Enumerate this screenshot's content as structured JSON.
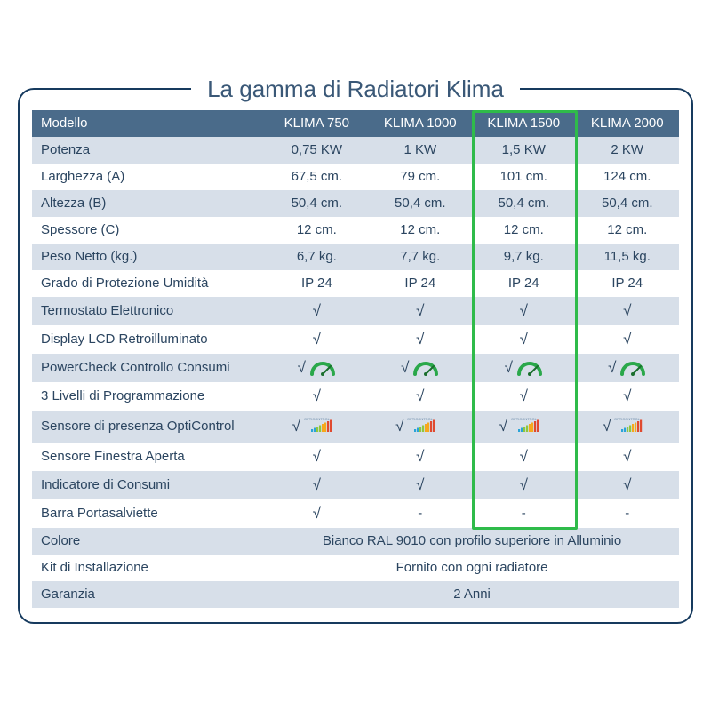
{
  "title": "La gamma di Radiatori Klima",
  "colors": {
    "frame_border": "#163a5e",
    "header_bg": "#4a6b8a",
    "header_fg": "#ffffff",
    "row_alt_bg": "#d7dfe9",
    "row_plain_bg": "#ffffff",
    "text": "#2b4560",
    "title": "#3a5877",
    "highlight": "#2fbb4a",
    "gauge_green": "#2aa84a",
    "gauge_needle": "#1b6f2e"
  },
  "check_glyph": "√",
  "dash_glyph": "-",
  "headers": {
    "label": "Modello",
    "cols": [
      "KLIMA 750",
      "KLIMA 1000",
      "KLIMA 1500",
      "KLIMA 2000"
    ]
  },
  "highlight_col_index": 2,
  "rows": [
    {
      "label": "Potenza",
      "type": "text",
      "vals": [
        "0,75 KW",
        "1 KW",
        "1,5 KW",
        "2 KW"
      ]
    },
    {
      "label": "Larghezza (A)",
      "type": "text",
      "vals": [
        "67,5 cm.",
        "79 cm.",
        "101 cm.",
        "124 cm."
      ]
    },
    {
      "label": "Altezza (B)",
      "type": "text",
      "vals": [
        "50,4 cm.",
        "50,4 cm.",
        "50,4 cm.",
        "50,4 cm."
      ]
    },
    {
      "label": "Spessore (C)",
      "type": "text",
      "vals": [
        "12 cm.",
        "12 cm.",
        "12 cm.",
        "12 cm."
      ]
    },
    {
      "label": "Peso Netto (kg.)",
      "type": "text",
      "vals": [
        "6,7 kg.",
        "7,7 kg.",
        "9,7 kg.",
        "11,5 kg."
      ]
    },
    {
      "label": "Grado di Protezione Umidità",
      "type": "text",
      "vals": [
        "IP 24",
        "IP 24",
        "IP 24",
        "IP 24"
      ]
    },
    {
      "label": "Termostato Elettronico",
      "type": "check",
      "vals": [
        true,
        true,
        true,
        true
      ]
    },
    {
      "label": "Display LCD Retroilluminato",
      "type": "check",
      "vals": [
        true,
        true,
        true,
        true
      ]
    },
    {
      "label": "PowerCheck Controllo Consumi",
      "type": "gauge",
      "vals": [
        true,
        true,
        true,
        true
      ]
    },
    {
      "label": "3 Livelli di Programmazione",
      "type": "check",
      "vals": [
        true,
        true,
        true,
        true
      ]
    },
    {
      "label": "Sensore di presenza OptiControl",
      "type": "bars",
      "vals": [
        true,
        true,
        true,
        true
      ]
    },
    {
      "label": "Sensore Finestra Aperta",
      "type": "check",
      "vals": [
        true,
        true,
        true,
        true
      ]
    },
    {
      "label": "Indicatore di Consumi",
      "type": "check",
      "vals": [
        true,
        true,
        true,
        true
      ]
    },
    {
      "label": "Barra Portasalviette",
      "type": "check",
      "vals": [
        true,
        false,
        false,
        false
      ]
    }
  ],
  "merged_rows": [
    {
      "label": "Colore",
      "value": "Bianco RAL 9010 con profilo superiore in Alluminio"
    },
    {
      "label": "Kit di Installazione",
      "value": "Fornito con ogni radiatore"
    },
    {
      "label": "Garanzia",
      "value": "2 Anni"
    }
  ],
  "icons": {
    "bars_label": "OPTICONTROL",
    "bars_colors": [
      "#2aa4d8",
      "#2aa4d8",
      "#8fc73e",
      "#8fc73e",
      "#f6a81c",
      "#f6a81c",
      "#e04a2f",
      "#e04a2f"
    ]
  }
}
